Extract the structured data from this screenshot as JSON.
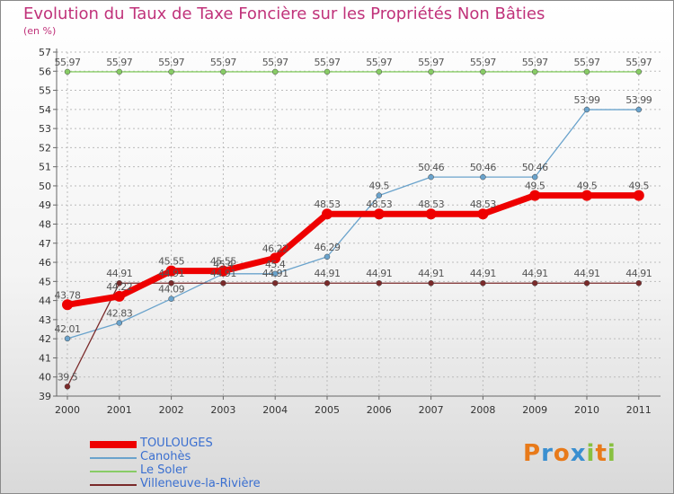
{
  "title": "Evolution du Taux de Taxe Foncière sur les Propriétés Non Bâties",
  "subtitle": "(en %)",
  "colors": {
    "title": "#c0327a",
    "axis": "#666666",
    "grid": "#bbbbbb",
    "label": "#555555"
  },
  "chart_data": {
    "type": "line",
    "x": [
      "2000",
      "2001",
      "2002",
      "2003",
      "2004",
      "2005",
      "2006",
      "2007",
      "2008",
      "2009",
      "2010",
      "2011"
    ],
    "ylim": [
      39,
      57
    ],
    "yticks": [
      "39",
      "40",
      "41",
      "42",
      "43",
      "44",
      "45",
      "46",
      "47",
      "48",
      "49",
      "50",
      "51",
      "52",
      "53",
      "54",
      "55",
      "56",
      "57"
    ],
    "grid": "dashed",
    "legend_position": "bottom-left",
    "series": [
      {
        "name": "TOULOUGES",
        "color": "#ee0000",
        "thick": true,
        "values": [
          43.78,
          44.22,
          45.55,
          45.55,
          46.22,
          48.53,
          48.53,
          48.53,
          48.53,
          49.5,
          49.5,
          49.5
        ],
        "labels": [
          "43.78",
          "44.22",
          "45.55",
          "45.55",
          "46.22",
          "48.53",
          "48.53",
          "48.53",
          "48.53",
          "49.5",
          "49.5",
          "49.5"
        ]
      },
      {
        "name": "Canohès",
        "color": "#6aa3cc",
        "thick": false,
        "values": [
          42.01,
          42.83,
          44.09,
          45.4,
          45.4,
          46.29,
          49.5,
          50.46,
          50.46,
          50.46,
          53.99,
          53.99
        ],
        "labels": [
          "42.01",
          "42.83",
          "44.09",
          "45.4",
          "45.4",
          "46.29",
          "49.5",
          "50.46",
          "50.46",
          "50.46",
          "53.99",
          "53.99"
        ]
      },
      {
        "name": "Le Soler",
        "color": "#88cc66",
        "thick": false,
        "values": [
          55.97,
          55.97,
          55.97,
          55.97,
          55.97,
          55.97,
          55.97,
          55.97,
          55.97,
          55.97,
          55.97,
          55.97
        ],
        "labels": [
          "55.97",
          "55.97",
          "55.97",
          "55.97",
          "55.97",
          "55.97",
          "55.97",
          "55.97",
          "55.97",
          "55.97",
          "55.97",
          "55.97"
        ]
      },
      {
        "name": "Villeneuve-la-Rivière",
        "color": "#7a2a2a",
        "thick": false,
        "values": [
          39.5,
          44.91,
          44.91,
          44.91,
          44.91,
          44.91,
          44.91,
          44.91,
          44.91,
          44.91,
          44.91,
          44.91
        ],
        "labels": [
          "39.5",
          "44.91",
          "44.91",
          "44.91",
          "44.91",
          "44.91",
          "44.91",
          "44.91",
          "44.91",
          "44.91",
          "44.91",
          "44.91"
        ]
      }
    ]
  },
  "logo": {
    "letters": [
      "P",
      "r",
      "o",
      "x",
      "i",
      "t",
      "i"
    ],
    "colors": [
      "#e87a1a",
      "#3a8fd0",
      "#e87a1a",
      "#3a8fd0",
      "#88c040",
      "#e87a1a",
      "#88c040"
    ]
  }
}
